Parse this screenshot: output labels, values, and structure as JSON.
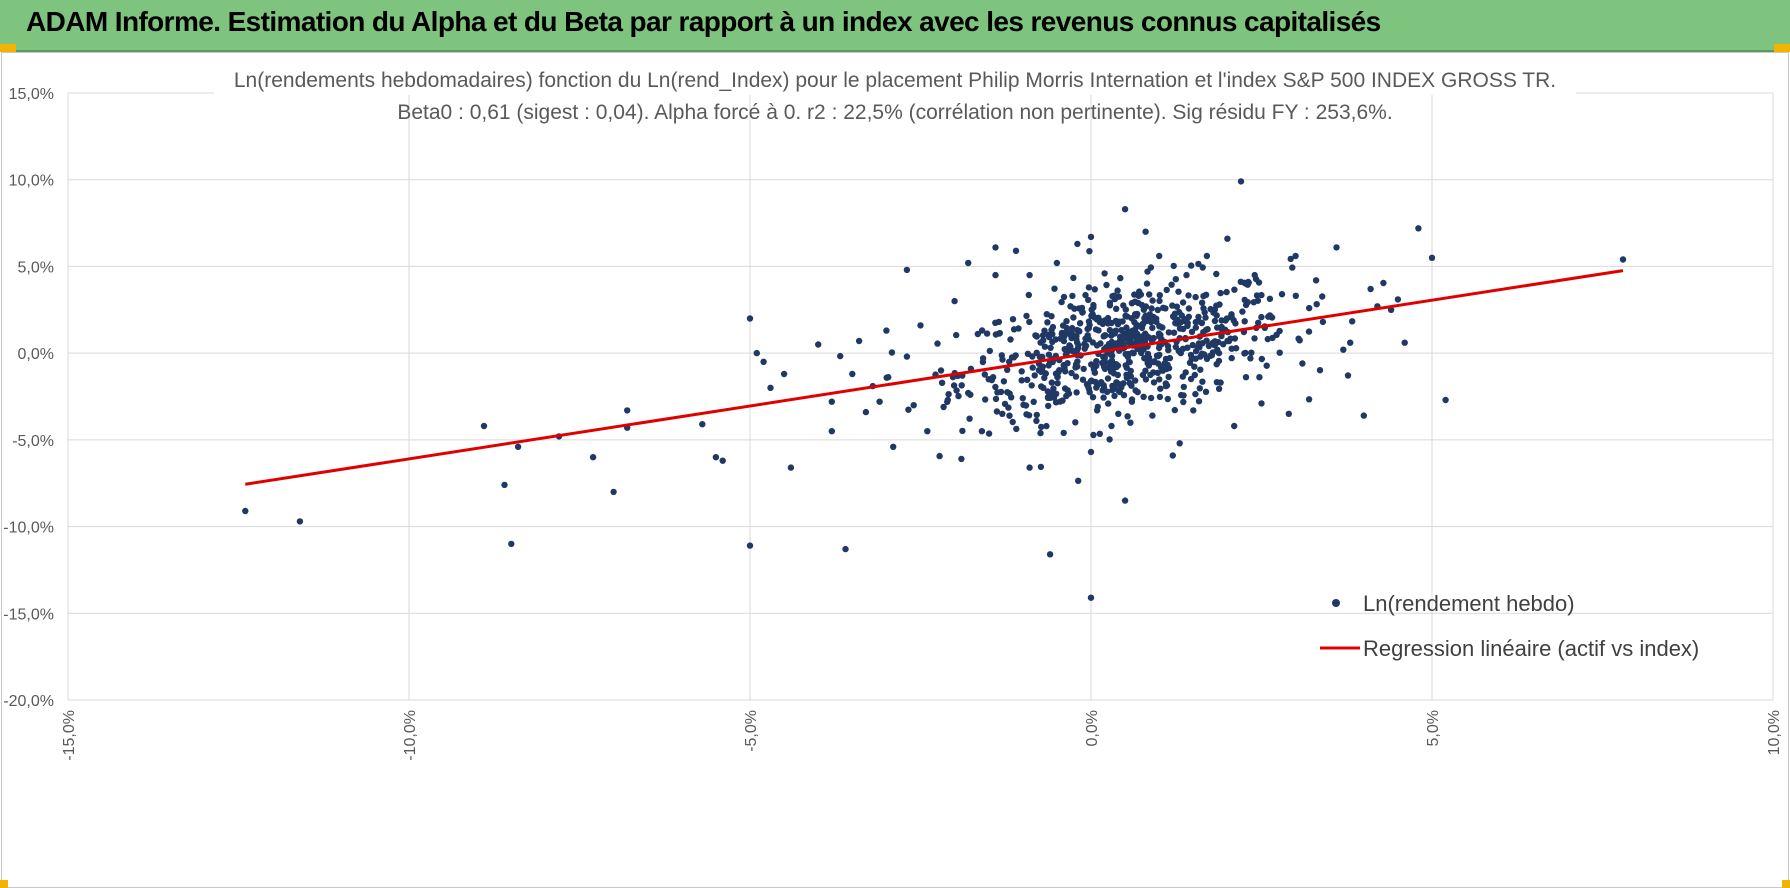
{
  "header": {
    "title": "ADAM Informe. Estimation du Alpha et du Beta par rapport à un index avec les revenus connus capitalisés"
  },
  "colors": {
    "header_bg": "#7ec37e",
    "accent": "#f2b400",
    "points": "#203864",
    "regression": "#e00000",
    "grid": "#d9d9d9"
  },
  "chart_data": {
    "type": "scatter",
    "title": "Ln(rendements hebdomadaires) fonction du Ln(rend_Index) pour le placement Philip Morris Internation et l'index S&P 500 INDEX GROSS TR.",
    "subtitle": "Beta0 : 0,61 (sigest : 0,04).  Alpha forcé à 0. r2 : 22,5% (corrélation non pertinente). Sig résidu FY : 253,6%.",
    "xlim": [
      -15,
      10
    ],
    "ylim": [
      -20,
      15
    ],
    "x_ticks": [
      "-15,0%",
      "-10,0%",
      "-5,0%",
      "0,0%",
      "5,0%",
      "10,0%"
    ],
    "y_ticks": [
      "15,0%",
      "10,0%",
      "5,0%",
      "0,0%",
      "-5,0%",
      "-10,0%",
      "-15,0%",
      "-20,0%"
    ],
    "grid": true,
    "legend_position": "bottom-right",
    "series": [
      {
        "name": "Ln(rendement hebdo)",
        "kind": "scatter",
        "color": "#203864",
        "points": [
          [
            -12.4,
            -9.1
          ],
          [
            -11.6,
            -9.7
          ],
          [
            -8.9,
            -4.2
          ],
          [
            -8.6,
            -7.6
          ],
          [
            -8.5,
            -11.0
          ],
          [
            -8.4,
            -5.4
          ],
          [
            -7.8,
            -4.8
          ],
          [
            -7.3,
            -6.0
          ],
          [
            -7.0,
            -8.0
          ],
          [
            -6.8,
            -4.3
          ],
          [
            -6.8,
            -3.3
          ],
          [
            -5.7,
            -4.1
          ],
          [
            -5.5,
            -6.0
          ],
          [
            -5.4,
            -6.2
          ],
          [
            -5.0,
            2.0
          ],
          [
            -5.0,
            -11.1
          ],
          [
            -4.9,
            0.0
          ],
          [
            -4.8,
            -0.5
          ],
          [
            -4.7,
            -2.0
          ],
          [
            -4.5,
            -1.2
          ],
          [
            -4.4,
            -6.6
          ],
          [
            -4.0,
            0.5
          ],
          [
            -3.8,
            -4.5
          ],
          [
            -3.8,
            -2.8
          ],
          [
            -3.6,
            -11.3
          ],
          [
            -3.5,
            -1.2
          ],
          [
            -3.4,
            0.7
          ],
          [
            -3.3,
            -3.4
          ],
          [
            -3.2,
            -1.9
          ],
          [
            -3.1,
            -2.8
          ],
          [
            -3.0,
            1.3
          ],
          [
            -2.9,
            -5.4
          ],
          [
            -2.7,
            -0.2
          ],
          [
            -2.7,
            4.8
          ],
          [
            -2.6,
            -3.0
          ],
          [
            -2.5,
            1.6
          ],
          [
            -2.4,
            -4.5
          ],
          [
            -2.2,
            -1.0
          ],
          [
            -2.1,
            -2.7
          ],
          [
            -2.0,
            3.0
          ],
          [
            -1.9,
            -6.1
          ],
          [
            -1.8,
            5.2
          ],
          [
            -1.8,
            -2.3
          ],
          [
            -1.6,
            -4.5
          ],
          [
            -1.5,
            -1.5
          ],
          [
            -1.4,
            4.5
          ],
          [
            -1.4,
            6.1
          ],
          [
            -1.3,
            -3.5
          ],
          [
            -1.2,
            -0.5
          ],
          [
            -1.1,
            5.9
          ],
          [
            -1.0,
            -2.6
          ],
          [
            -0.9,
            -6.6
          ],
          [
            -0.9,
            4.5
          ],
          [
            -0.8,
            -3.9
          ],
          [
            -0.8,
            1.0
          ],
          [
            -0.7,
            -2.0
          ],
          [
            -0.6,
            -11.6
          ],
          [
            -0.5,
            5.2
          ],
          [
            -0.4,
            -4.6
          ],
          [
            -0.3,
            2.7
          ],
          [
            -0.2,
            6.3
          ],
          [
            0.0,
            -14.1
          ],
          [
            0.0,
            -5.7
          ],
          [
            0.0,
            6.7
          ],
          [
            0.1,
            -3.1
          ],
          [
            0.2,
            4.6
          ],
          [
            0.3,
            -4.2
          ],
          [
            0.4,
            -3.5
          ],
          [
            0.5,
            8.3
          ],
          [
            0.5,
            -8.5
          ],
          [
            0.6,
            -2.8
          ],
          [
            0.7,
            3.3
          ],
          [
            0.8,
            7.0
          ],
          [
            0.9,
            -3.6
          ],
          [
            1.0,
            5.6
          ],
          [
            1.1,
            -1.9
          ],
          [
            1.2,
            -5.9
          ],
          [
            1.3,
            -5.2
          ],
          [
            1.4,
            4.5
          ],
          [
            1.5,
            -3.3
          ],
          [
            1.7,
            5.6
          ],
          [
            1.9,
            -1.7
          ],
          [
            2.0,
            6.6
          ],
          [
            2.1,
            -4.2
          ],
          [
            2.2,
            9.9
          ],
          [
            2.4,
            4.5
          ],
          [
            2.5,
            -2.9
          ],
          [
            2.6,
            2.1
          ],
          [
            2.8,
            3.4
          ],
          [
            2.9,
            -3.5
          ],
          [
            3.0,
            5.6
          ],
          [
            3.1,
            -0.6
          ],
          [
            3.2,
            2.6
          ],
          [
            3.3,
            4.2
          ],
          [
            3.4,
            1.8
          ],
          [
            3.6,
            6.1
          ],
          [
            3.7,
            0.2
          ],
          [
            3.8,
            0.6
          ],
          [
            4.0,
            -3.6
          ],
          [
            4.1,
            3.7
          ],
          [
            4.2,
            2.7
          ],
          [
            4.4,
            2.5
          ],
          [
            4.5,
            3.1
          ],
          [
            4.6,
            0.6
          ],
          [
            4.8,
            7.2
          ],
          [
            5.0,
            5.5
          ],
          [
            5.2,
            -2.7
          ],
          [
            7.8,
            5.4
          ]
        ],
        "cloud": {
          "center": [
            0.5,
            0.3
          ],
          "sd_x": 1.2,
          "sd_y": 1.8,
          "slope": 0.61,
          "count": 700
        }
      },
      {
        "name": "Regression linéaire (actif vs index)",
        "kind": "line",
        "color": "#e00000",
        "x": [
          -12.4,
          7.8
        ],
        "y": [
          -7.56,
          4.76
        ]
      }
    ]
  }
}
